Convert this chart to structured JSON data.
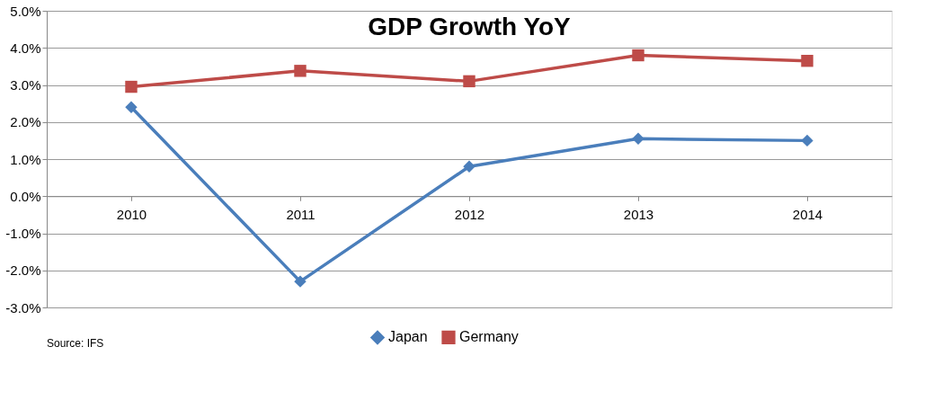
{
  "chart_data": {
    "type": "line",
    "title": "GDP Growth YoY",
    "categories": [
      "2010",
      "2011",
      "2012",
      "2013",
      "2014"
    ],
    "series": [
      {
        "name": "Japan",
        "color": "#4a7ebb",
        "marker": "diamond",
        "values": [
          2.4,
          -2.3,
          0.8,
          1.55,
          1.5
        ]
      },
      {
        "name": "Germany",
        "color": "#be4b48",
        "marker": "square",
        "values": [
          2.95,
          3.38,
          3.1,
          3.8,
          3.65
        ]
      }
    ],
    "ylim": [
      -3,
      5
    ],
    "yticks": [
      {
        "value": -3,
        "label": "-3.0%"
      },
      {
        "value": -2,
        "label": "-2.0%"
      },
      {
        "value": -1,
        "label": "-1.0%"
      },
      {
        "value": 0,
        "label": "0.0%"
      },
      {
        "value": 1,
        "label": "1.0%"
      },
      {
        "value": 2,
        "label": "2.0%"
      },
      {
        "value": 3,
        "label": "3.0%"
      },
      {
        "value": 4,
        "label": "4.0%"
      },
      {
        "value": 5,
        "label": "5.0%"
      }
    ],
    "grid": "y",
    "legend": "bottom",
    "line_style": "solid",
    "annotations": [
      "Source: IFS"
    ]
  }
}
